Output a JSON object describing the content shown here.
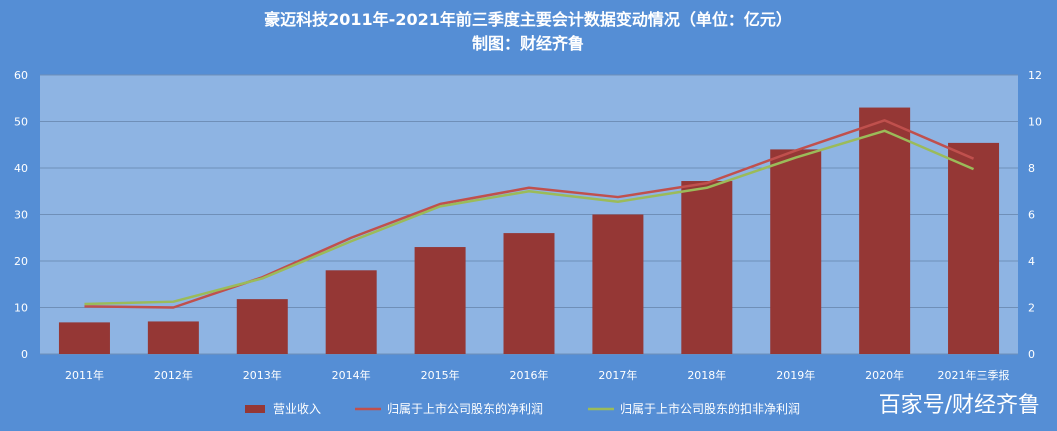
{
  "chart_data": {
    "type": "bar",
    "title": "豪迈科技2011年-2021年前三季度主要会计数据变动情况（单位：亿元）",
    "subtitle": "制图：财经齐鲁",
    "categories": [
      "2011年",
      "2012年",
      "2013年",
      "2014年",
      "2015年",
      "2016年",
      "2017年",
      "2018年",
      "2019年",
      "2020年",
      "2021年三季报"
    ],
    "y_left": {
      "ticks": [
        "0",
        "10",
        "20",
        "30",
        "40",
        "50",
        "60"
      ],
      "ylim": [
        0,
        60
      ]
    },
    "y_right": {
      "ticks": [
        "0",
        "2",
        "4",
        "6",
        "8",
        "10",
        "12"
      ],
      "ylim": [
        0,
        12
      ]
    },
    "grid": true,
    "legend_position": "bottom",
    "series": [
      {
        "name": "营业收入",
        "type": "bar",
        "axis": "left",
        "color": "#953735",
        "values": [
          6.8,
          7.0,
          11.8,
          18.0,
          23.0,
          26.0,
          30.0,
          37.2,
          44.0,
          53.0,
          45.4
        ]
      },
      {
        "name": "归属于上市公司股东的净利润",
        "type": "line",
        "axis": "right",
        "color": "#c0504d",
        "values": [
          2.05,
          2.0,
          3.3,
          5.0,
          6.45,
          7.15,
          6.75,
          7.35,
          8.75,
          10.05,
          8.4
        ]
      },
      {
        "name": "归属于上市公司股东的扣非净利润",
        "type": "line",
        "axis": "right",
        "color": "#9bbb59",
        "values": [
          2.15,
          2.25,
          3.25,
          4.85,
          6.35,
          7.0,
          6.55,
          7.15,
          8.45,
          9.6,
          7.95
        ]
      }
    ]
  },
  "watermark": "百家号/财经齐鲁"
}
